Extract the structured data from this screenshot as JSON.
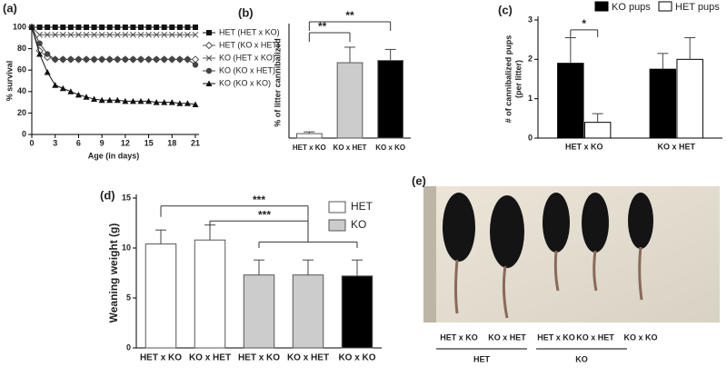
{
  "chart_data": [
    {
      "type": "line",
      "panel": "(a)",
      "xlabel": "Age (in days)",
      "ylabel": "% survival",
      "x": [
        0,
        1,
        2,
        3,
        4,
        5,
        6,
        7,
        8,
        9,
        10,
        11,
        12,
        13,
        14,
        15,
        16,
        17,
        18,
        19,
        20,
        21
      ],
      "xlim": [
        0,
        21
      ],
      "xticks": [
        0,
        3,
        6,
        9,
        12,
        15,
        18,
        21
      ],
      "ylim": [
        0,
        100
      ],
      "yticks": [
        0,
        20,
        40,
        60,
        80,
        100
      ],
      "series": [
        {
          "name": "HET (HET x KO)",
          "color": "#111111",
          "marker": "square",
          "values": [
            100,
            100,
            100,
            100,
            100,
            100,
            100,
            100,
            100,
            100,
            100,
            100,
            100,
            100,
            100,
            100,
            100,
            100,
            100,
            100,
            100,
            100
          ]
        },
        {
          "name": "HET (KO x HET)",
          "color": "#555555",
          "marker": "diamond",
          "values": [
            100,
            78,
            72,
            70,
            70,
            70,
            70,
            70,
            70,
            70,
            70,
            70,
            70,
            70,
            70,
            70,
            70,
            70,
            70,
            70,
            70,
            70
          ]
        },
        {
          "name": "KO (HET x KO)",
          "color": "#555555",
          "marker": "x",
          "values": [
            100,
            93,
            93,
            93,
            93,
            93,
            93,
            93,
            93,
            93,
            93,
            93,
            93,
            93,
            93,
            93,
            93,
            93,
            93,
            93,
            93,
            93
          ]
        },
        {
          "name": "KO (KO x HET)",
          "color": "#444444",
          "marker": "circle",
          "values": [
            100,
            85,
            75,
            70,
            70,
            70,
            70,
            70,
            70,
            70,
            70,
            70,
            70,
            70,
            70,
            70,
            70,
            70,
            70,
            70,
            70,
            65
          ]
        },
        {
          "name": "KO (KO x KO)",
          "color": "#111111",
          "marker": "triangle",
          "values": [
            100,
            75,
            58,
            46,
            43,
            40,
            37,
            35,
            33,
            32,
            32,
            32,
            31,
            31,
            31,
            31,
            30,
            30,
            30,
            29,
            29,
            28
          ]
        }
      ]
    },
    {
      "type": "bar",
      "panel": "(b)",
      "ylabel": "% of litter cannibalized",
      "categories": [
        "HET x KO",
        "KO x HET",
        "KO x KO"
      ],
      "values": [
        2,
        34,
        35
      ],
      "errors": [
        0.8,
        7,
        5
      ],
      "colors": [
        "#ffffff",
        "#cccccc",
        "#000000"
      ],
      "ylim": [
        0,
        50
      ],
      "annotations": [
        "**",
        "**"
      ]
    },
    {
      "type": "grouped-bar",
      "panel": "(c)",
      "ylabel_lines": [
        "# of cannibalized pups",
        "(per litter)"
      ],
      "categories": [
        "HET x KO",
        "KO x HET"
      ],
      "ylim": [
        0,
        3
      ],
      "yticks": [
        0,
        1,
        2,
        3
      ],
      "series": [
        {
          "name": "KO pups",
          "color": "#000000",
          "values": [
            1.9,
            1.75
          ],
          "errors": [
            0.65,
            0.4
          ]
        },
        {
          "name": "HET pups",
          "color": "#ffffff",
          "values": [
            0.4,
            2.0
          ],
          "errors": [
            0.22,
            0.55
          ]
        }
      ],
      "annotations": [
        "*"
      ]
    },
    {
      "type": "bar",
      "panel": "(d)",
      "ylabel": "Weaning weight (g)",
      "categories": [
        "HET x KO",
        "KO x HET",
        "HET x KO",
        "KO x HET",
        "KO x KO"
      ],
      "values": [
        10.4,
        10.8,
        7.3,
        7.3,
        7.2
      ],
      "errors": [
        1.4,
        1.5,
        1.5,
        1.5,
        1.6
      ],
      "colors": [
        "#ffffff",
        "#ffffff",
        "#cccccc",
        "#cccccc",
        "#000000"
      ],
      "ylim": [
        0,
        15
      ],
      "yticks": [
        0,
        5,
        10,
        15
      ],
      "legend": [
        {
          "name": "HET",
          "color": "#ffffff"
        },
        {
          "name": "KO",
          "color": "#cccccc"
        }
      ],
      "annotations": [
        "***",
        "***"
      ]
    },
    {
      "type": "image",
      "panel": "(e)",
      "labels": [
        "HET x KO",
        "KO x HET",
        "HET x KO",
        "KO x HET",
        "KO x KO"
      ],
      "groups": [
        "HET",
        "KO"
      ]
    }
  ]
}
